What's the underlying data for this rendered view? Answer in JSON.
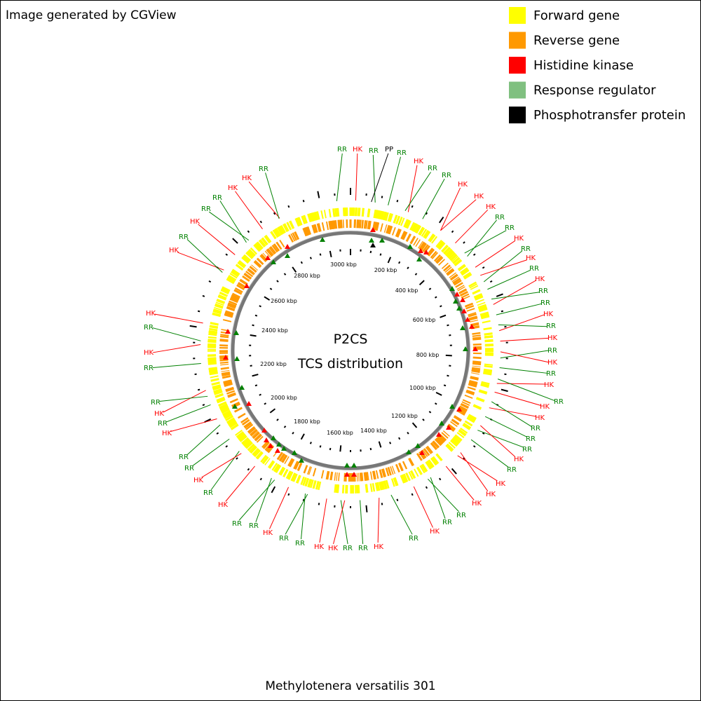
{
  "header": {
    "text": "Image generated by CGView"
  },
  "legend": [
    {
      "label": "Forward gene",
      "color": "#ffff00"
    },
    {
      "label": "Reverse gene",
      "color": "#ff9900"
    },
    {
      "label": "Histidine kinase",
      "color": "#ff0000"
    },
    {
      "label": "Response regulator",
      "color": "#80c080"
    },
    {
      "label": "Phosphotransfer protein",
      "color": "#000000"
    }
  ],
  "center": {
    "title": "P2CS",
    "subtitle": "TCS distribution"
  },
  "ruler_labels": [
    "200 kbp",
    "400 kbp",
    "600 kbp",
    "800 kbp",
    "1000 kbp",
    "1200 kbp",
    "1400 kbp",
    "1600 kbp",
    "1800 kbp",
    "2000 kbp",
    "2200 kbp",
    "2400 kbp",
    "2600 kbp",
    "2800 kbp",
    "3000 kbp"
  ],
  "features": [
    {
      "label": "RR",
      "color": "#008000"
    },
    {
      "label": "HK",
      "color": "#ff0000"
    },
    {
      "label": "RR",
      "color": "#008000"
    },
    {
      "label": "PP",
      "color": "#000000"
    },
    {
      "label": "RR",
      "color": "#008000"
    },
    {
      "label": "HK",
      "color": "#ff0000"
    },
    {
      "label": "RR",
      "color": "#008000"
    },
    {
      "label": "RR",
      "color": "#008000"
    },
    {
      "label": "HK",
      "color": "#ff0000"
    },
    {
      "label": "HK",
      "color": "#ff0000"
    },
    {
      "label": "HK",
      "color": "#ff0000"
    },
    {
      "label": "RR",
      "color": "#008000"
    },
    {
      "label": "RR",
      "color": "#008000"
    },
    {
      "label": "HK",
      "color": "#ff0000"
    },
    {
      "label": "RR",
      "color": "#008000"
    },
    {
      "label": "HK",
      "color": "#ff0000"
    },
    {
      "label": "RR",
      "color": "#008000"
    },
    {
      "label": "HK",
      "color": "#ff0000"
    },
    {
      "label": "RR",
      "color": "#008000"
    },
    {
      "label": "RR",
      "color": "#008000"
    },
    {
      "label": "HK",
      "color": "#ff0000"
    },
    {
      "label": "RR",
      "color": "#008000"
    },
    {
      "label": "HK",
      "color": "#ff0000"
    },
    {
      "label": "RR",
      "color": "#008000"
    },
    {
      "label": "HK",
      "color": "#ff0000"
    },
    {
      "label": "RR",
      "color": "#008000"
    },
    {
      "label": "HK",
      "color": "#ff0000"
    },
    {
      "label": "RR",
      "color": "#008000"
    },
    {
      "label": "HK",
      "color": "#ff0000"
    },
    {
      "label": "HK",
      "color": "#ff0000"
    },
    {
      "label": "RR",
      "color": "#008000"
    },
    {
      "label": "RR",
      "color": "#008000"
    },
    {
      "label": "RR",
      "color": "#008000"
    },
    {
      "label": "HK",
      "color": "#ff0000"
    },
    {
      "label": "RR",
      "color": "#008000"
    },
    {
      "label": "HK",
      "color": "#ff0000"
    },
    {
      "label": "HK",
      "color": "#ff0000"
    },
    {
      "label": "HK",
      "color": "#ff0000"
    },
    {
      "label": "RR",
      "color": "#008000"
    },
    {
      "label": "RR",
      "color": "#008000"
    },
    {
      "label": "HK",
      "color": "#ff0000"
    },
    {
      "label": "RR",
      "color": "#008000"
    },
    {
      "label": "HK",
      "color": "#ff0000"
    },
    {
      "label": "RR",
      "color": "#008000"
    },
    {
      "label": "RR",
      "color": "#008000"
    },
    {
      "label": "HK",
      "color": "#ff0000"
    },
    {
      "label": "HK",
      "color": "#ff0000"
    },
    {
      "label": "RR",
      "color": "#008000"
    },
    {
      "label": "RR",
      "color": "#008000"
    },
    {
      "label": "HK",
      "color": "#ff0000"
    },
    {
      "label": "RR",
      "color": "#008000"
    },
    {
      "label": "RR",
      "color": "#008000"
    },
    {
      "label": "HK",
      "color": "#ff0000"
    },
    {
      "label": "RR",
      "color": "#008000"
    },
    {
      "label": "HK",
      "color": "#ff0000"
    },
    {
      "label": "RR",
      "color": "#008000"
    },
    {
      "label": "RR",
      "color": "#008000"
    },
    {
      "label": "HK",
      "color": "#ff0000"
    },
    {
      "label": "RR",
      "color": "#008000"
    },
    {
      "label": "HK",
      "color": "#ff0000"
    },
    {
      "label": "RR",
      "color": "#008000"
    },
    {
      "label": "RR",
      "color": "#008000"
    },
    {
      "label": "HK",
      "color": "#ff0000"
    },
    {
      "label": "RR",
      "color": "#008000"
    },
    {
      "label": "HK",
      "color": "#ff0000"
    },
    {
      "label": "HK",
      "color": "#ff0000"
    },
    {
      "label": "RR",
      "color": "#008000"
    },
    {
      "label": "HK",
      "color": "#ff0000"
    },
    {
      "label": "RR",
      "color": "#008000"
    },
    {
      "label": "RR",
      "color": "#008000"
    },
    {
      "label": "HK",
      "color": "#ff0000"
    },
    {
      "label": "HK",
      "color": "#ff0000"
    },
    {
      "label": "RR",
      "color": "#008000"
    }
  ],
  "footer": "Methylotenera versatilis 301"
}
